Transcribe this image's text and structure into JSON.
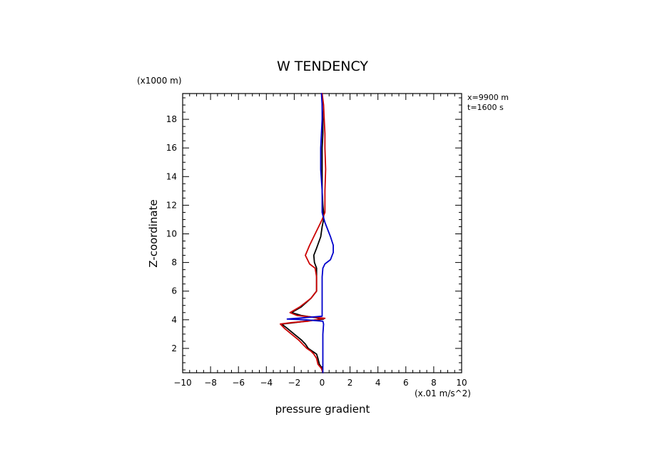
{
  "chart_data": {
    "type": "line",
    "title": "W TENDENCY",
    "xlabel": "pressure gradient",
    "x_units": "(x.01 m/s^2)",
    "ylabel": "Z-coordinate",
    "y_units": "(x1000 m)",
    "annotations": [
      "x=9900 m",
      "t=1600 s"
    ],
    "xlim": [
      -10,
      10
    ],
    "ylim": [
      0.3,
      19.8
    ],
    "x_ticks": [
      -10,
      -8,
      -6,
      -4,
      -2,
      0,
      2,
      4,
      6,
      8,
      10
    ],
    "y_ticks": [
      2,
      4,
      6,
      8,
      10,
      12,
      14,
      16,
      18
    ],
    "grid": false,
    "series": [
      {
        "color": "#000000",
        "points": [
          [
            0.05,
            0.3
          ],
          [
            0.0,
            0.6
          ],
          [
            -0.2,
            0.9
          ],
          [
            -0.3,
            1.3
          ],
          [
            -0.4,
            1.6
          ],
          [
            -0.7,
            1.8
          ],
          [
            -1.0,
            2.0
          ],
          [
            -1.2,
            2.3
          ],
          [
            -1.5,
            2.6
          ],
          [
            -2.0,
            3.0
          ],
          [
            -2.5,
            3.4
          ],
          [
            -2.9,
            3.7
          ],
          [
            -2.0,
            3.8
          ],
          [
            -0.8,
            3.95
          ],
          [
            0.1,
            4.05
          ],
          [
            -0.5,
            4.15
          ],
          [
            -1.5,
            4.3
          ],
          [
            -2.2,
            4.5
          ],
          [
            -1.5,
            4.9
          ],
          [
            -0.8,
            5.5
          ],
          [
            -0.4,
            6.0
          ],
          [
            -0.4,
            7.0
          ],
          [
            -0.4,
            7.6
          ],
          [
            -0.55,
            8.0
          ],
          [
            -0.6,
            8.5
          ],
          [
            -0.4,
            9.0
          ],
          [
            -0.1,
            9.8
          ],
          [
            0.0,
            10.5
          ],
          [
            0.1,
            11.0
          ],
          [
            0.1,
            11.5
          ],
          [
            0.05,
            12.0
          ],
          [
            0.0,
            13.0
          ],
          [
            0.0,
            14.5
          ],
          [
            0.0,
            16.0
          ],
          [
            0.05,
            17.0
          ],
          [
            0.05,
            18.0
          ],
          [
            0.0,
            19.0
          ],
          [
            0.0,
            19.8
          ]
        ]
      },
      {
        "color": "#cc0000",
        "points": [
          [
            0.05,
            0.3
          ],
          [
            -0.05,
            0.6
          ],
          [
            -0.3,
            0.9
          ],
          [
            -0.4,
            1.3
          ],
          [
            -0.6,
            1.6
          ],
          [
            -0.8,
            1.8
          ],
          [
            -1.1,
            2.0
          ],
          [
            -1.4,
            2.3
          ],
          [
            -1.7,
            2.6
          ],
          [
            -2.2,
            3.0
          ],
          [
            -2.7,
            3.4
          ],
          [
            -3.0,
            3.7
          ],
          [
            -2.2,
            3.8
          ],
          [
            -1.0,
            3.9
          ],
          [
            0.2,
            4.1
          ],
          [
            -0.8,
            4.2
          ],
          [
            -1.8,
            4.3
          ],
          [
            -2.3,
            4.5
          ],
          [
            -1.6,
            4.9
          ],
          [
            -0.8,
            5.5
          ],
          [
            -0.4,
            6.0
          ],
          [
            -0.4,
            7.0
          ],
          [
            -0.5,
            7.6
          ],
          [
            -0.9,
            7.9
          ],
          [
            -1.2,
            8.5
          ],
          [
            -0.9,
            9.2
          ],
          [
            -0.5,
            10.0
          ],
          [
            0.0,
            11.0
          ],
          [
            0.2,
            11.5
          ],
          [
            0.2,
            12.0
          ],
          [
            0.2,
            13.0
          ],
          [
            0.25,
            14.5
          ],
          [
            0.2,
            16.0
          ],
          [
            0.2,
            17.0
          ],
          [
            0.15,
            18.0
          ],
          [
            0.1,
            19.0
          ],
          [
            0.0,
            19.8
          ]
        ]
      },
      {
        "color": "#0000cc",
        "points": [
          [
            0.05,
            0.3
          ],
          [
            0.05,
            1.0
          ],
          [
            0.05,
            2.0
          ],
          [
            0.05,
            3.0
          ],
          [
            0.1,
            3.7
          ],
          [
            0.05,
            3.9
          ],
          [
            -1.2,
            4.0
          ],
          [
            -2.5,
            4.05
          ],
          [
            -1.2,
            4.15
          ],
          [
            0.0,
            4.25
          ],
          [
            0.0,
            5.0
          ],
          [
            0.0,
            6.0
          ],
          [
            0.0,
            7.0
          ],
          [
            0.05,
            7.6
          ],
          [
            0.2,
            7.9
          ],
          [
            0.6,
            8.2
          ],
          [
            0.8,
            8.7
          ],
          [
            0.8,
            9.2
          ],
          [
            0.6,
            9.8
          ],
          [
            0.4,
            10.3
          ],
          [
            0.2,
            10.8
          ],
          [
            0.05,
            11.3
          ],
          [
            0.0,
            11.5
          ],
          [
            0.0,
            12.0
          ],
          [
            0.0,
            13.0
          ],
          [
            -0.1,
            14.5
          ],
          [
            -0.1,
            16.0
          ],
          [
            -0.05,
            17.0
          ],
          [
            0.0,
            18.0
          ],
          [
            0.0,
            19.0
          ],
          [
            -0.05,
            19.8
          ]
        ]
      }
    ]
  }
}
